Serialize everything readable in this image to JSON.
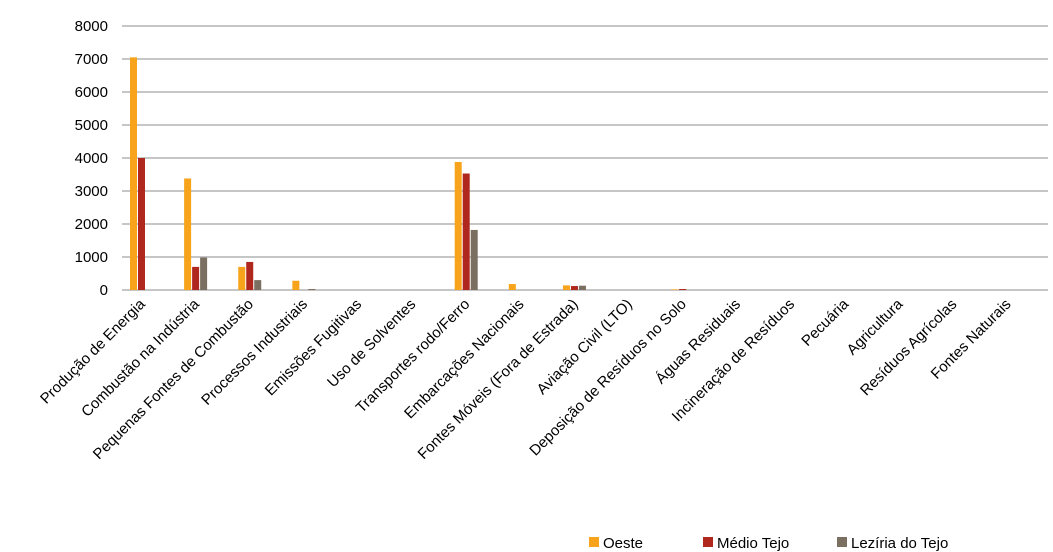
{
  "chart_data": {
    "type": "bar",
    "categories": [
      "Produção de Energia",
      "Combustão na Indústria",
      "Pequenas Fontes de Combustão",
      "Processos Industriais",
      "Emissões Fugitivas",
      "Uso de Solventes",
      "Transportes rodo/Ferro",
      "Embarcações Nacionais",
      "Fontes Móveis (Fora de Estrada)",
      "Aviação Civil (LTO)",
      "Deposição de Resíduos no Solo",
      "Águas Residuais",
      "Incineração de Resíduos",
      "Pecuária",
      "Agricultura",
      "Resíduos Agrícolas",
      "Fontes Naturais"
    ],
    "series": [
      {
        "name": "Oeste",
        "color": "#f7a31c",
        "values": [
          7050,
          3380,
          700,
          280,
          0,
          0,
          3880,
          180,
          140,
          0,
          20,
          0,
          0,
          0,
          0,
          0,
          0
        ]
      },
      {
        "name": "Médio Tejo",
        "color": "#b0271e",
        "values": [
          4000,
          700,
          850,
          0,
          0,
          0,
          3530,
          0,
          120,
          0,
          30,
          0,
          0,
          0,
          0,
          0,
          0
        ]
      },
      {
        "name": "Lezíria do Tejo",
        "color": "#7a6f60",
        "values": [
          0,
          980,
          300,
          30,
          0,
          0,
          1820,
          0,
          130,
          0,
          0,
          0,
          0,
          0,
          0,
          0,
          0
        ]
      }
    ],
    "yticks": [
      "0",
      "1000",
      "2000",
      "3000",
      "4000",
      "5000",
      "6000",
      "7000",
      "8000"
    ],
    "ylim": [
      0,
      8000
    ],
    "grid": true,
    "legend": "bottom-right"
  }
}
